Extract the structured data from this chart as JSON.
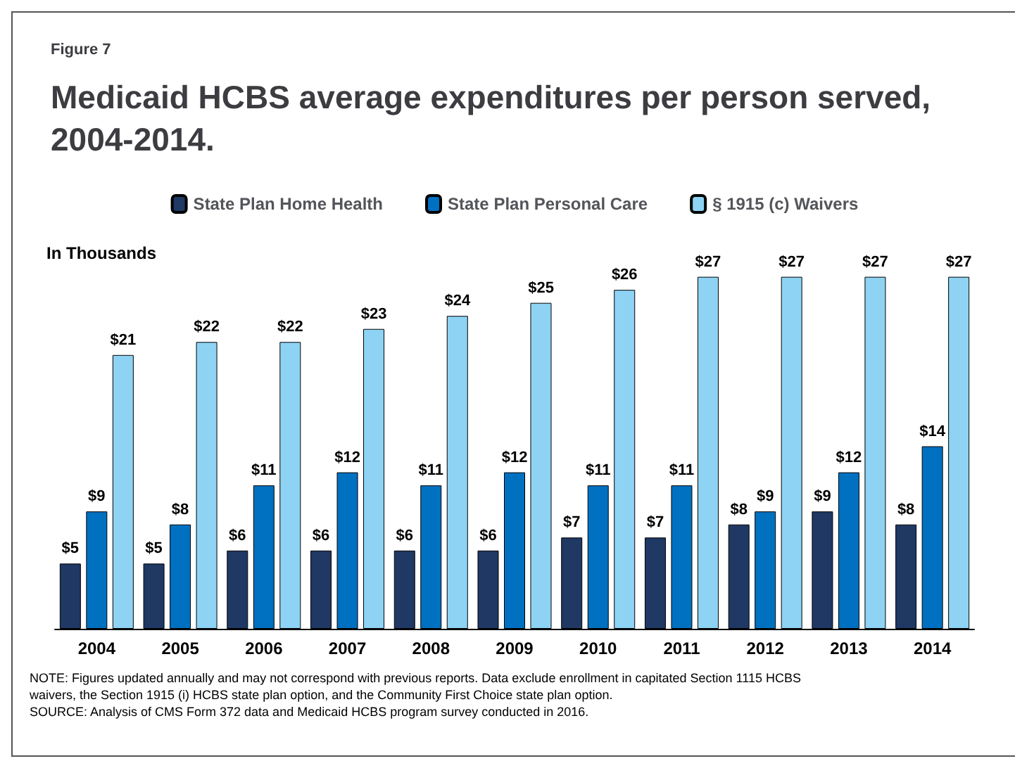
{
  "chart_data": {
    "type": "bar",
    "subtitle": "Figure 7",
    "title": "Medicaid HCBS average expenditures per person served, 2004-2014.",
    "ylabel": "In Thousands",
    "categories": [
      "2004",
      "2005",
      "2006",
      "2007",
      "2008",
      "2009",
      "2010",
      "2011",
      "2012",
      "2013",
      "2014"
    ],
    "series": [
      {
        "name": "State Plan Home Health",
        "color": "#1f3864",
        "values": [
          5,
          5,
          6,
          6,
          6,
          6,
          7,
          7,
          8,
          9,
          8
        ],
        "value_labels": [
          "$5",
          "$5",
          "$6",
          "$6",
          "$6",
          "$6",
          "$7",
          "$7",
          "$8",
          "$9",
          "$8"
        ]
      },
      {
        "name": "State Plan Personal Care",
        "color": "#0070c0",
        "values": [
          9,
          8,
          11,
          12,
          11,
          12,
          11,
          11,
          9,
          12,
          14
        ],
        "value_labels": [
          "$9",
          "$8",
          "$11",
          "$12",
          "$11",
          "$12",
          "$11",
          "$11",
          "$9",
          "$12",
          "$14"
        ]
      },
      {
        "name": "§ 1915 (c) Waivers",
        "color": "#8ed3f4",
        "values": [
          21,
          22,
          22,
          23,
          24,
          25,
          26,
          27,
          27,
          27,
          27
        ],
        "value_labels": [
          "$21",
          "$22",
          "$22",
          "$23",
          "$24",
          "$25",
          "$26",
          "$27",
          "$27",
          "$27",
          "$27"
        ]
      }
    ],
    "legend": "top",
    "annotations": [
      "NOTE: Figures updated annually and may not correspond with previous reports. Data exclude enrollment in capitated Section 1115 HCBS waivers, the Section 1915 (i) HCBS state plan option, and the Community First Choice state plan option.",
      "SOURCE: Analysis of CMS Form 372 data and Medicaid HCBS program survey conducted in 2016."
    ]
  }
}
